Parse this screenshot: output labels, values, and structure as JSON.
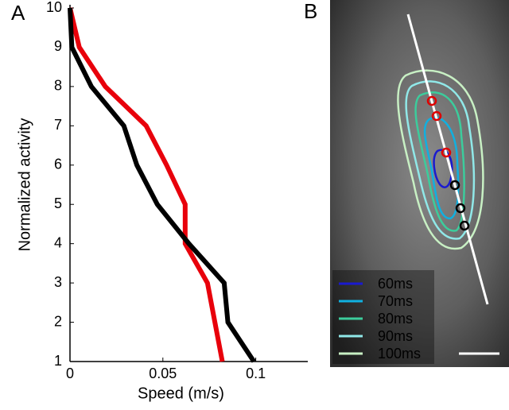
{
  "chart_data": [
    {
      "type": "line",
      "panel": "A",
      "xlabel": "Speed (m/s)",
      "ylabel": "Normalized activity",
      "y": [
        10,
        9,
        8,
        7,
        6,
        5,
        4,
        3,
        2,
        1
      ],
      "series": [
        {
          "color": "#e8000b",
          "values": [
            0,
            0.005,
            0.019,
            0.041,
            0.052,
            0.062,
            0.062,
            0.074,
            0.078,
            0.082
          ]
        },
        {
          "color": "#000000",
          "values": [
            0,
            0.001,
            0.0115,
            0.029,
            0.036,
            0.047,
            0.064,
            0.083,
            0.085,
            0.099
          ]
        }
      ],
      "xlim": [
        0,
        0.128
      ],
      "xticks": [
        0,
        0.05,
        0.1
      ],
      "ylim": [
        1,
        10
      ],
      "yticks": [
        1,
        2,
        3,
        4,
        5,
        6,
        7,
        8,
        9,
        10
      ]
    },
    {
      "type": "image",
      "panel": "B",
      "series": [
        {
          "name": "60ms",
          "color": "#1a1ad0"
        },
        {
          "name": "70ms",
          "color": "#10b0e0"
        },
        {
          "name": "80ms",
          "color": "#3ccc9c"
        },
        {
          "name": "90ms",
          "color": "#90e8e8"
        },
        {
          "name": "100ms",
          "color": "#c8f0c4"
        }
      ]
    }
  ]
}
